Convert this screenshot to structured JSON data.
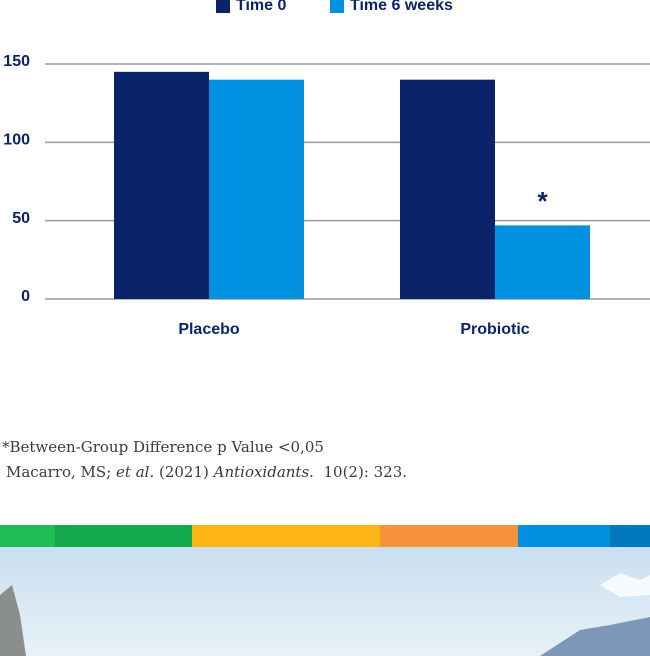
{
  "chart_data": {
    "type": "bar",
    "categories": [
      "Placebo",
      "Probiotic"
    ],
    "series": [
      {
        "name": "Time 0",
        "color": "#0b2469",
        "values": [
          145,
          140
        ]
      },
      {
        "name": "Time 6 weeks",
        "color": "#0091e1",
        "values": [
          140,
          47
        ]
      }
    ],
    "ylim": [
      0,
      150
    ],
    "yticks": [
      0,
      50,
      100,
      150
    ],
    "grid": true,
    "legend": "top",
    "annotation": "*"
  },
  "footnotes": {
    "line1": "*Between-Group Difference p Value <0,05",
    "line2": [
      "Macarro, MS; ",
      "et al",
      ". (2021) ",
      "Antioxidants",
      ".  10(2): 323."
    ]
  }
}
